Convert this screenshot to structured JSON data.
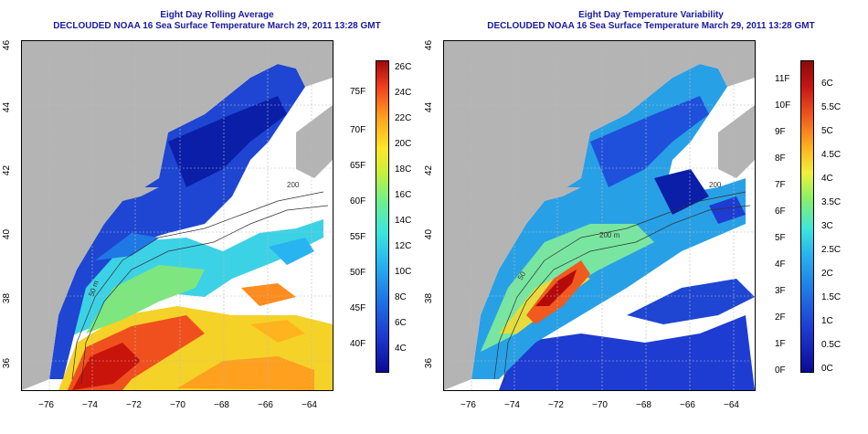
{
  "left_panel": {
    "title_line1": "Eight Day Rolling Average",
    "title_line2": "DECLOUDED NOAA 16 Sea Surface Temperature March 29, 2011 13:28 GMT",
    "f_labels": [
      "75F",
      "70F",
      "65F",
      "60F",
      "55F",
      "50F",
      "45F",
      "40F"
    ],
    "c_labels": [
      "26C",
      "24C",
      "22C",
      "20C",
      "18C",
      "16C",
      "14C",
      "12C",
      "10C",
      "8C",
      "6C",
      "4C"
    ]
  },
  "right_panel": {
    "title_line1": "Eight Day Temperature Variability",
    "title_line2": "DECLOUDED NOAA 16 Sea Surface Temperature March 29, 2011 13:28 GMT",
    "f_labels": [
      "11F",
      "10F",
      "9F",
      "8F",
      "7F",
      "6F",
      "5F",
      "4F",
      "3F",
      "2F",
      "1F",
      "0F"
    ],
    "c_labels": [
      "6C",
      "5.5C",
      "5C",
      "4.5C",
      "4C",
      "3.5C",
      "3C",
      "2.5C",
      "2C",
      "1.5C",
      "1C",
      "0.5C",
      "0C"
    ]
  },
  "axes": {
    "lon_labels": [
      "−76",
      "−74",
      "−72",
      "−70",
      "−68",
      "−66",
      "−64"
    ],
    "lat_labels": [
      "36",
      "38",
      "40",
      "42",
      "44",
      "46"
    ]
  },
  "contour_labels": [
    "200",
    "200 m",
    "50",
    "200",
    "50 m"
  ],
  "colors": {
    "land": "#b4b4b4",
    "title": "#1a1aa0"
  }
}
